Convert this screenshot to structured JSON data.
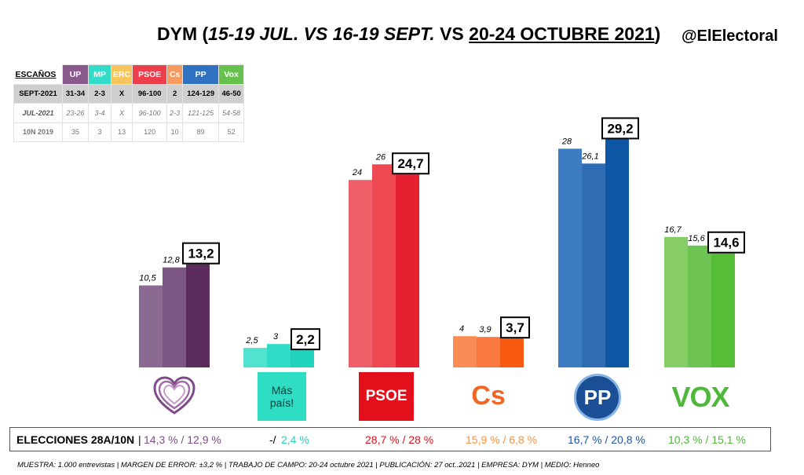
{
  "header": {
    "prefix": "DYM (",
    "period_jul": "15-19 JUL.",
    "vs1": " VS ",
    "period_sept": "16-19 SEPT.",
    "vs2": " VS ",
    "period_oct": "20-24 OCTUBRE 2021",
    "suffix": ")",
    "handle": "@ElElectoral"
  },
  "seats_table": {
    "label": "ESCAÑOS",
    "parties": [
      {
        "name": "UP",
        "color": "#8b5a8c"
      },
      {
        "name": "MP",
        "color": "#33dcc8"
      },
      {
        "name": "ERC",
        "color": "#f8c45c"
      },
      {
        "name": "PSOE",
        "color": "#ec3e4b"
      },
      {
        "name": "Cs",
        "color": "#f79a5f"
      },
      {
        "name": "PP",
        "color": "#2f72c2"
      },
      {
        "name": "Vox",
        "color": "#66c14d"
      }
    ],
    "rows": [
      {
        "label": "SEPT-2021",
        "values": [
          "31-34",
          "2-3",
          "X",
          "96-100",
          "2",
          "124-129",
          "46-50"
        ]
      },
      {
        "label": "JUL-2021",
        "values": [
          "23-26",
          "3-4",
          "X",
          "96-100",
          "2-3",
          "121-125",
          "54-58"
        ]
      },
      {
        "label": "10N 2019",
        "values": [
          "35",
          "3",
          "13",
          "120",
          "10",
          "89",
          "52"
        ]
      }
    ]
  },
  "chart_data": {
    "type": "bar",
    "categories": [
      "UP",
      "Más País",
      "PSOE",
      "Cs",
      "PP",
      "Vox"
    ],
    "series": [
      {
        "name": "15-19 JUL.",
        "values": [
          10.5,
          2.5,
          24,
          4,
          28,
          16.7
        ],
        "labels": [
          "10,5",
          "2,5",
          "24",
          "4",
          "28",
          "16,7"
        ]
      },
      {
        "name": "16-19 SEPT.",
        "values": [
          12.8,
          3,
          26,
          3.9,
          26.1,
          15.6
        ],
        "labels": [
          "12,8",
          "3",
          "26",
          "3,9",
          "26,1",
          "15,6"
        ]
      },
      {
        "name": "20-24 OCTUBRE 2021",
        "values": [
          13.2,
          2.2,
          24.7,
          3.7,
          29.2,
          14.6
        ],
        "labels": [
          "13,2",
          "2,2",
          "24,7",
          "3,7",
          "29,2",
          "14,6"
        ]
      }
    ],
    "colors": [
      [
        "#8a6a93",
        "#7c5785",
        "#5a2b5c"
      ],
      [
        "#4fe3d0",
        "#2fdcc7",
        "#1fd3bd"
      ],
      [
        "#f06068",
        "#ee4852",
        "#e62030"
      ],
      [
        "#fa8c55",
        "#f97840",
        "#f95a12"
      ],
      [
        "#3c7cc2",
        "#2f6cb3",
        "#0c56a3"
      ],
      [
        "#86cd66",
        "#6ec453",
        "#56bd36"
      ]
    ],
    "ylim": [
      0,
      30
    ],
    "grid": false,
    "legend": "none"
  },
  "logos": {
    "mp_line1": "Más",
    "mp_line2": "país!",
    "psoe": "PSOE",
    "cs": "Cs",
    "pp": "PP",
    "vox": "VOX"
  },
  "elections": {
    "label": "ELECCIONES 28A/10N",
    "separator": "|",
    "values": [
      {
        "text": "14,3 % / 12,9 %",
        "color": "#7b4c86"
      },
      {
        "text": "-/",
        "color": "#000000"
      },
      {
        "text": "2,4 %",
        "color": "#2fcdb9"
      },
      {
        "text": "28,7  % / 28 %",
        "color": "#e3101c"
      },
      {
        "text": "15,9 % / 6,8 %",
        "color": "#f7913f"
      },
      {
        "text": "16,7 % / 20,8 %",
        "color": "#1a56a8"
      },
      {
        "text": "10,3 % / 15,1 %",
        "color": "#4fb83a"
      }
    ]
  },
  "footer": "MUESTRA: 1.000 entrevistas | MARGEN DE ERROR: ±3,2 % | TRABAJO DE CAMPO: 20-24 octubre 2021 | PUBLICACIÓN: 27 oct..2021 | EMPRESA: DYM | MEDIO: Henneo"
}
